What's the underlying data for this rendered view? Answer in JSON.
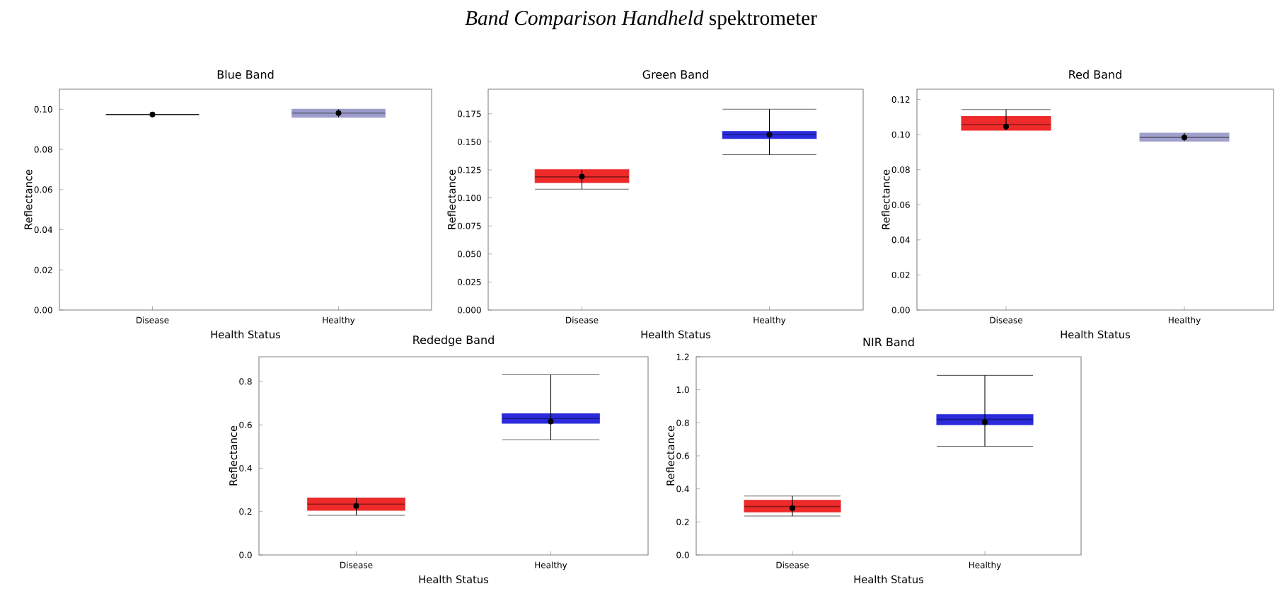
{
  "chart_data": [
    {
      "type": "box",
      "title": "Blue Band",
      "xlabel": "Health Status",
      "ylabel": "Reflectance",
      "annotations": [
        "*Band Comparison Handheld* spektrometer"
      ],
      "categories": [
        "Disease",
        "Healthy"
      ],
      "colors": [
        "#333333",
        "#9c9ccc"
      ],
      "boxes": [
        {
          "low": 0.0974,
          "q1": 0.0974,
          "median": 0.0974,
          "q3": 0.0974,
          "high": 0.0974,
          "mean": 0.0974
        },
        {
          "low": 0.096,
          "q1": 0.096,
          "median": 0.0981,
          "q3": 0.1,
          "high": 0.1,
          "mean": 0.0981
        }
      ],
      "ylim": [
        0,
        0.11
      ],
      "yticks": [
        {
          "value": 0,
          "label": "0.00"
        },
        {
          "value": 0.02,
          "label": "0.02"
        },
        {
          "value": 0.04,
          "label": "0.04"
        },
        {
          "value": 0.06,
          "label": "0.06"
        },
        {
          "value": 0.08,
          "label": "0.08"
        },
        {
          "value": 0.1,
          "label": "0.10"
        }
      ]
    },
    {
      "type": "box",
      "title": "Green Band",
      "xlabel": "Health Status",
      "ylabel": "Reflectance",
      "categories": [
        "Disease",
        "Healthy"
      ],
      "colors": [
        "#ee2a2a",
        "#2b2bdd"
      ],
      "boxes": [
        {
          "low": 0.1078,
          "q1": 0.1137,
          "median": 0.1188,
          "q3": 0.1251,
          "high": 0.1251,
          "mean": 0.119
        },
        {
          "low": 0.1386,
          "q1": 0.153,
          "median": 0.1564,
          "q3": 0.1593,
          "high": 0.1792,
          "mean": 0.1564
        }
      ],
      "ylim": [
        0,
        0.197
      ],
      "yticks": [
        {
          "value": 0,
          "label": "0.000"
        },
        {
          "value": 0.025,
          "label": "0.025"
        },
        {
          "value": 0.05,
          "label": "0.050"
        },
        {
          "value": 0.075,
          "label": "0.075"
        },
        {
          "value": 0.1,
          "label": "0.100"
        },
        {
          "value": 0.125,
          "label": "0.125"
        },
        {
          "value": 0.15,
          "label": "0.150"
        },
        {
          "value": 0.175,
          "label": "0.175"
        }
      ]
    },
    {
      "type": "box",
      "title": "Red Band",
      "xlabel": "Health Status",
      "ylabel": "Reflectance",
      "categories": [
        "Disease",
        "Healthy"
      ],
      "colors": [
        "#ee2a2a",
        "#a0a0cc"
      ],
      "boxes": [
        {
          "low": 0.1025,
          "q1": 0.1025,
          "median": 0.1057,
          "q3": 0.1103,
          "high": 0.1143,
          "mean": 0.1046
        },
        {
          "low": 0.0963,
          "q1": 0.0963,
          "median": 0.0984,
          "q3": 0.1009,
          "high": 0.1009,
          "mean": 0.0984
        }
      ],
      "ylim": [
        0,
        0.1259
      ],
      "yticks": [
        {
          "value": 0,
          "label": "0.00"
        },
        {
          "value": 0.02,
          "label": "0.02"
        },
        {
          "value": 0.04,
          "label": "0.04"
        },
        {
          "value": 0.06,
          "label": "0.06"
        },
        {
          "value": 0.08,
          "label": "0.08"
        },
        {
          "value": 0.1,
          "label": "0.10"
        },
        {
          "value": 0.12,
          "label": "0.12"
        }
      ]
    },
    {
      "type": "box",
      "title": "Rededge Band",
      "xlabel": "Health Status",
      "ylabel": "Reflectance",
      "categories": [
        "Disease",
        "Healthy"
      ],
      "colors": [
        "#ee2a2a",
        "#2b2bdd"
      ],
      "boxes": [
        {
          "low": 0.183,
          "q1": 0.206,
          "median": 0.234,
          "q3": 0.263,
          "high": 0.263,
          "mean": 0.226
        },
        {
          "low": 0.531,
          "q1": 0.607,
          "median": 0.629,
          "q3": 0.651,
          "high": 0.831,
          "mean": 0.615
        }
      ],
      "ylim": [
        0,
        0.914
      ],
      "yticks": [
        {
          "value": 0,
          "label": "0.0"
        },
        0.2,
        0.4,
        0.6,
        0.8
      ]
    },
    {
      "type": "box",
      "title": "NIR Band",
      "xlabel": "Health Status",
      "ylabel": "Reflectance",
      "categories": [
        "Disease",
        "Healthy"
      ],
      "colors": [
        "#ee2a2a",
        "#2b2bdd"
      ],
      "boxes": [
        {
          "low": 0.236,
          "q1": 0.26,
          "median": 0.293,
          "q3": 0.331,
          "high": 0.357,
          "mean": 0.283
        },
        {
          "low": 0.658,
          "q1": 0.789,
          "median": 0.82,
          "q3": 0.85,
          "high": 1.087,
          "mean": 0.804
        }
      ],
      "ylim": [
        0,
        1.2
      ],
      "yticks": [
        {
          "value": 0,
          "label": "0.0"
        },
        0.2,
        0.4,
        0.6,
        0.8,
        {
          "value": 1.0,
          "label": "1.0"
        },
        1.2
      ]
    }
  ]
}
